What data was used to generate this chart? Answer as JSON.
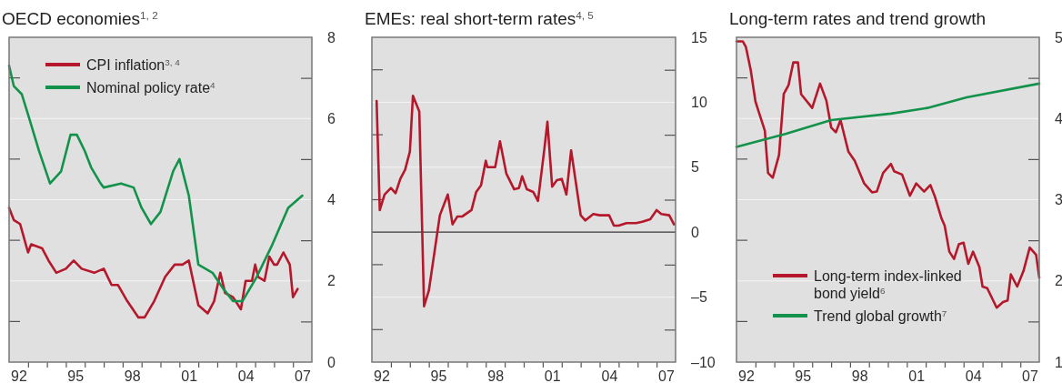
{
  "chart_data": [
    {
      "type": "line",
      "title": "OECD economies$^{1, 2}$",
      "xlim": [
        "1992",
        "2008"
      ],
      "ylim": [
        0,
        8
      ],
      "xticks": [
        {
          "value": "1992-07",
          "label": "92"
        },
        {
          "value": "1995-07",
          "label": "95"
        },
        {
          "value": "1998-07",
          "label": "98"
        },
        {
          "value": "2001-07",
          "label": "01"
        },
        {
          "value": "2004-07",
          "label": "04"
        },
        {
          "value": "2007-07",
          "label": "07"
        },
        {
          "value": "1993",
          "label": null
        },
        {
          "value": "1994",
          "label": null
        },
        {
          "value": "1995",
          "label": null
        },
        {
          "value": "1996",
          "label": null
        },
        {
          "value": "1997",
          "label": null
        },
        {
          "value": "1998",
          "label": null
        },
        {
          "value": "1999",
          "label": null
        },
        {
          "value": "2000",
          "label": null
        },
        {
          "value": "2001",
          "label": null
        },
        {
          "value": "2002",
          "label": null
        },
        {
          "value": "2003",
          "label": null
        },
        {
          "value": "2004",
          "label": null
        },
        {
          "value": "2005",
          "label": null
        },
        {
          "value": "2006",
          "label": null
        },
        {
          "value": "2007",
          "label": null
        }
      ],
      "yticks": [
        0,
        {
          "value": 1,
          "label": null
        },
        2,
        {
          "value": 3,
          "label": null
        },
        4,
        {
          "value": 5,
          "label": null
        },
        6,
        {
          "value": 7,
          "label": null
        },
        8
      ],
      "grid": "y",
      "legend": "top left",
      "series": [
        {
          "name": "CPI inflation$^{3, 4}$",
          "color": "#b5172b",
          "x": [
            "1992-01",
            "1992-04",
            "1992-08",
            "1993-01",
            "1993-03",
            "1993-10",
            "1994-02",
            "1994-07",
            "1995-01",
            "1995-06",
            "1995-11",
            "1996-07",
            "1997-01",
            "1997-06",
            "1997-10",
            "1998-04",
            "1998-11",
            "1999-03",
            "1999-09",
            "2000-04",
            "2000-10",
            "2001-03",
            "2001-07",
            "2002-01",
            "2002-07",
            "2002-11",
            "2003-03",
            "2003-06",
            "2003-11",
            "2004-04",
            "2004-07",
            "2004-11",
            "2005-01",
            "2005-03",
            "2005-07",
            "2005-10",
            "2006-01",
            "2006-03",
            "2006-07",
            "2006-11",
            "2007-01",
            "2007-04"
          ],
          "values": [
            3.8,
            3.5,
            3.4,
            2.7,
            2.9,
            2.8,
            2.5,
            2.2,
            2.3,
            2.5,
            2.3,
            2.2,
            2.3,
            1.9,
            1.9,
            1.5,
            1.1,
            1.1,
            1.5,
            2.1,
            2.4,
            2.4,
            2.5,
            1.4,
            1.2,
            1.5,
            2.2,
            1.7,
            1.6,
            1.3,
            2.0,
            2.0,
            2.4,
            2.1,
            2.0,
            2.6,
            2.4,
            2.4,
            2.7,
            2.4,
            1.6,
            1.8
          ]
        },
        {
          "name": "Nominal policy rate$^{4}$",
          "color": "#12924a",
          "x": [
            "1992-01",
            "1992-04",
            "1992-09",
            "1993-01",
            "1993-08",
            "1994-03",
            "1994-10",
            "1995-04",
            "1995-08",
            "1996-01",
            "1996-05",
            "1996-11",
            "1997-01",
            "1997-12",
            "1998-08",
            "1999-01",
            "1999-07",
            "2000-01",
            "2000-09",
            "2001-01",
            "2001-07",
            "2002-01",
            "2002-10",
            "2003-05",
            "2003-11",
            "2004-05",
            "2005-02",
            "2005-12",
            "2006-10",
            "2007-07"
          ],
          "values": [
            7.3,
            6.8,
            6.6,
            6.1,
            5.2,
            4.4,
            4.7,
            5.6,
            5.6,
            5.2,
            4.8,
            4.4,
            4.3,
            4.4,
            4.3,
            3.8,
            3.4,
            3.7,
            4.7,
            5.0,
            4.1,
            2.4,
            2.2,
            1.8,
            1.5,
            1.5,
            2.1,
            2.9,
            3.8,
            4.1
          ]
        }
      ]
    },
    {
      "type": "line",
      "title": "EMEs: real short-term rates$^{4, 5}$",
      "xlim": [
        "1992",
        "2008"
      ],
      "ylim": [
        -10,
        15
      ],
      "xticks": [
        {
          "value": "1992-07",
          "label": "92"
        },
        {
          "value": "1995-07",
          "label": "95"
        },
        {
          "value": "1998-07",
          "label": "98"
        },
        {
          "value": "2001-07",
          "label": "01"
        },
        {
          "value": "2004-07",
          "label": "04"
        },
        {
          "value": "2007-07",
          "label": "07"
        },
        {
          "value": "1993",
          "label": null
        },
        {
          "value": "1994",
          "label": null
        },
        {
          "value": "1995",
          "label": null
        },
        {
          "value": "1996",
          "label": null
        },
        {
          "value": "1997",
          "label": null
        },
        {
          "value": "1998",
          "label": null
        },
        {
          "value": "1999",
          "label": null
        },
        {
          "value": "2000",
          "label": null
        },
        {
          "value": "2001",
          "label": null
        },
        {
          "value": "2002",
          "label": null
        },
        {
          "value": "2003",
          "label": null
        },
        {
          "value": "2004",
          "label": null
        },
        {
          "value": "2005",
          "label": null
        },
        {
          "value": "2006",
          "label": null
        },
        {
          "value": "2007",
          "label": null
        }
      ],
      "yticks": [
        {
          "value": -10,
          "label": "–10"
        },
        {
          "value": -7.5,
          "label": null
        },
        {
          "value": -5,
          "label": "–5"
        },
        {
          "value": -2.5,
          "label": null
        },
        0,
        {
          "value": 2.5,
          "label": null
        },
        5,
        {
          "value": 7.5,
          "label": null
        },
        10,
        {
          "value": 12.5,
          "label": null
        },
        15
      ],
      "grid": "y",
      "ref_lines": [
        {
          "axis": "y",
          "value": 0,
          "color": "#333333"
        }
      ],
      "series": [
        {
          "color": "#b5172b",
          "x": [
            "1992-04",
            "1992-06",
            "1992-09",
            "1993-01",
            "1993-04",
            "1993-07",
            "1993-10",
            "1994-01",
            "1994-03",
            "1994-07",
            "1994-10",
            "1995-01",
            "1995-08",
            "1996-01",
            "1996-04",
            "1996-07",
            "1996-10",
            "1997-04",
            "1997-07",
            "1997-10",
            "1998-01",
            "1998-02",
            "1998-07",
            "1998-10",
            "1999-02",
            "1999-07",
            "1999-10",
            "1999-12",
            "2000-03",
            "2000-07",
            "2000-10",
            "2001-02",
            "2001-04",
            "2001-07",
            "2001-10",
            "2002-01",
            "2002-04",
            "2002-07",
            "2003-01",
            "2003-04",
            "2003-09",
            "2004-01",
            "2004-07",
            "2004-10",
            "2005-01",
            "2005-06",
            "2005-12",
            "2006-04",
            "2006-09",
            "2007-01",
            "2007-04",
            "2007-09",
            "2007-12"
          ],
          "values": [
            10.1,
            1.7,
            2.9,
            3.4,
            3.0,
            4.1,
            4.8,
            6.2,
            10.5,
            9.3,
            -5.7,
            -4.5,
            1.3,
            2.9,
            0.6,
            1.2,
            1.2,
            1.7,
            3.1,
            3.6,
            5.5,
            5.0,
            5.0,
            7.0,
            4.5,
            3.3,
            3.4,
            4.3,
            3.3,
            3.1,
            2.4,
            6.4,
            8.5,
            3.5,
            4.0,
            4.1,
            2.9,
            6.3,
            1.3,
            0.9,
            1.4,
            1.3,
            1.3,
            0.5,
            0.5,
            0.7,
            0.7,
            0.8,
            1.0,
            1.7,
            1.4,
            1.3,
            0.6
          ]
        }
      ]
    },
    {
      "type": "line",
      "title": "Long-term rates and trend growth",
      "xlim": [
        "1992",
        "2008"
      ],
      "ylim": [
        1,
        5
      ],
      "xticks": [
        {
          "value": "1992-07",
          "label": "92"
        },
        {
          "value": "1995-07",
          "label": "95"
        },
        {
          "value": "1998-07",
          "label": "98"
        },
        {
          "value": "2001-07",
          "label": "01"
        },
        {
          "value": "2004-07",
          "label": "04"
        },
        {
          "value": "2007-07",
          "label": "07"
        },
        {
          "value": "1993",
          "label": null
        },
        {
          "value": "1994",
          "label": null
        },
        {
          "value": "1995",
          "label": null
        },
        {
          "value": "1996",
          "label": null
        },
        {
          "value": "1997",
          "label": null
        },
        {
          "value": "1998",
          "label": null
        },
        {
          "value": "1999",
          "label": null
        },
        {
          "value": "2000",
          "label": null
        },
        {
          "value": "2001",
          "label": null
        },
        {
          "value": "2002",
          "label": null
        },
        {
          "value": "2003",
          "label": null
        },
        {
          "value": "2004",
          "label": null
        },
        {
          "value": "2005",
          "label": null
        },
        {
          "value": "2006",
          "label": null
        },
        {
          "value": "2007",
          "label": null
        }
      ],
      "yticks": [
        1,
        {
          "value": 1.5,
          "label": null
        },
        2,
        {
          "value": 2.5,
          "label": null
        },
        3,
        {
          "value": 3.5,
          "label": null
        },
        4,
        {
          "value": 4.5,
          "label": null
        },
        5
      ],
      "grid": "y",
      "legend": "bottom left",
      "series": [
        {
          "name": "Long-term index-linked bond yield$^{6}$",
          "color": "#b5172b",
          "x": [
            "1992-01",
            "1992-05",
            "1992-07",
            "1992-10",
            "1993-01",
            "1993-03",
            "1993-07",
            "1993-09",
            "1993-12",
            "1994-04",
            "1994-07",
            "1994-10",
            "1995-01",
            "1995-04",
            "1995-06",
            "1996-01",
            "1996-06",
            "1996-10",
            "1997-01",
            "1997-04",
            "1997-07",
            "1997-12",
            "1998-04",
            "1998-10",
            "1999-03",
            "1999-06",
            "1999-10",
            "2000-03",
            "2000-05",
            "2000-10",
            "2001-03",
            "2001-07",
            "2001-12",
            "2002-04",
            "2002-07",
            "2002-11",
            "2003-01",
            "2003-04",
            "2003-07",
            "2003-10",
            "2004-01",
            "2004-04",
            "2004-07",
            "2004-11",
            "2005-01",
            "2005-04",
            "2005-10",
            "2006-02",
            "2006-05",
            "2006-07",
            "2006-11",
            "2007-03",
            "2007-07",
            "2007-11",
            "2008-01"
          ],
          "values": [
            4.95,
            4.95,
            4.88,
            4.6,
            4.21,
            4.09,
            3.85,
            3.33,
            3.27,
            3.55,
            4.3,
            4.41,
            4.69,
            4.69,
            4.3,
            4.13,
            4.43,
            4.22,
            3.89,
            3.83,
            3.98,
            3.59,
            3.48,
            3.2,
            3.09,
            3.1,
            3.33,
            3.44,
            3.35,
            3.31,
            3.05,
            3.2,
            3.1,
            3.18,
            3.03,
            2.77,
            2.68,
            2.36,
            2.27,
            2.45,
            2.47,
            2.21,
            2.36,
            2.17,
            1.93,
            1.91,
            1.67,
            1.74,
            1.76,
            2.08,
            1.93,
            2.12,
            2.41,
            2.32,
            2.04
          ]
        },
        {
          "name": "Trend global growth$^{7}$",
          "color": "#12924a",
          "x": [
            "1992-01",
            "1994-08",
            "1997-01",
            "2000-03",
            "2002-02",
            "2004-03",
            "2008-01"
          ],
          "values": [
            3.65,
            3.81,
            3.98,
            4.06,
            4.13,
            4.26,
            4.43
          ]
        }
      ]
    }
  ]
}
